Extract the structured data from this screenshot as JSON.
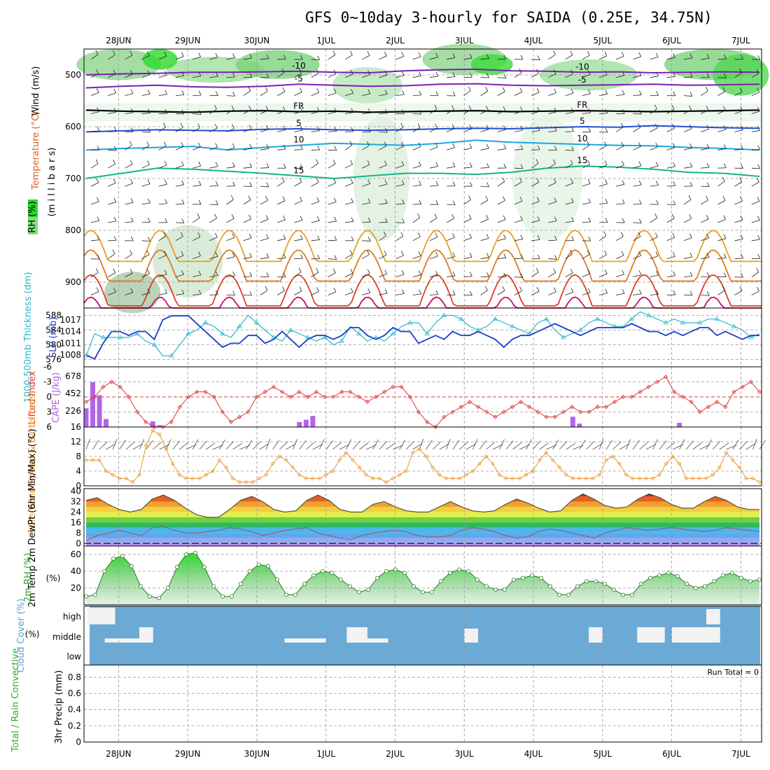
{
  "chart_data": {
    "type": "meteogram",
    "title": "GFS 0~10day 3-hourly for SAIDA (0.25E, 34.75N)",
    "dates": [
      "28JUN",
      "29JUN",
      "30JUN",
      "1JUL",
      "2JUL",
      "3JUL",
      "4JUL",
      "5JUL",
      "6JUL",
      "7JUL"
    ],
    "time_axis": {
      "start_day": -0.5,
      "end_day": 9.3,
      "step_hours": 3
    },
    "colors": {
      "rh": "#7fe07f",
      "temp_cold": "#7a1fb0",
      "temp_blue": "#1e4fd6",
      "temp_cyan": "#1aa8e0",
      "temp_green": "#12b58a",
      "temp_orange": "#e3a020",
      "temp_red": "#d94020",
      "slp": "#1a3fc8",
      "thickness": "#2ab8c8",
      "cape": "#b064e8",
      "lifted": "#d83838",
      "wind10m": "#e8962a",
      "rh2m": "#2ea82e",
      "cloud": "#6aaad4",
      "cloudblock": "#f2f2f2"
    },
    "panels": {
      "upper": {
        "ylabel_wind": "Wind (m/s)",
        "ylabel_temp": "Temperature (°C)",
        "ylabel_rh": "RH (%)",
        "ylabel_p": "(m i l l i b a r s)",
        "pressure_ticks": [
          "500",
          "600",
          "700",
          "800",
          "900"
        ],
        "pressure_values": [
          500,
          600,
          700,
          800,
          900
        ],
        "plim": [
          450,
          950
        ],
        "freezing_label": "FR",
        "isotherms": [
          {
            "label": "-10",
            "level": [
              500,
              498,
              497,
              495,
              495,
              494,
              493,
              495,
              496,
              492,
              490,
              489,
              492,
              493,
              495,
              494,
              496,
              495,
              494,
              495
            ],
            "color": "#7a1fb0"
          },
          {
            "label": "-5",
            "level": [
              525,
              522,
              520,
              523,
              524,
              522,
              518,
              520,
              522,
              521,
              518,
              517,
              520,
              521,
              520,
              519,
              518,
              520,
              519,
              518
            ],
            "color": "#7a1fb0"
          },
          {
            "label": "FR",
            "level": [
              568,
              570,
              571,
              572,
              570,
              569,
              571,
              570,
              572,
              571,
              570,
              569,
              571,
              570,
              569,
              570,
              571,
              570,
              569,
              568
            ],
            "color": "#000000"
          },
          {
            "label": "5",
            "level": [
              610,
              608,
              606,
              607,
              608,
              605,
              604,
              606,
              607,
              606,
              604,
              603,
              604,
              602,
              600,
              601,
              598,
              600,
              602,
              603
            ],
            "color": "#1e4fd6"
          },
          {
            "label": "10",
            "level": [
              645,
              642,
              640,
              638,
              645,
              640,
              636,
              632,
              634,
              636,
              632,
              626,
              630,
              632,
              634,
              636,
              637,
              640,
              642,
              645
            ],
            "color": "#1aa8e0"
          },
          {
            "label": "15",
            "level": [
              700,
              690,
              680,
              682,
              686,
              690,
              695,
              700,
              695,
              690,
              690,
              692,
              688,
              680,
              676,
              678,
              682,
              688,
              690,
              696
            ],
            "color": "#12b58a"
          }
        ]
      },
      "slp_thickness": {
        "ylabel_left": "1000-500mb Thickness (dm)",
        "ylabel_right": "SLP (mb)",
        "thickness_ticks": [
          "576",
          "580",
          "584",
          "588"
        ],
        "slp_ticks": [
          "1008",
          "1011",
          "1014",
          "1017"
        ],
        "thickness": [
          577,
          583,
          582,
          582,
          582,
          582,
          583,
          581,
          580,
          577,
          577,
          580,
          583,
          584,
          586,
          585,
          583,
          582,
          585,
          588,
          586,
          584,
          582,
          581,
          584,
          583,
          582,
          581,
          582,
          580,
          581,
          585,
          583,
          581,
          582,
          581,
          583,
          585,
          586,
          586,
          583,
          586,
          588,
          588,
          587,
          585,
          584,
          585,
          587,
          586,
          585,
          584,
          583,
          586,
          587,
          584,
          582,
          583,
          584,
          586,
          587,
          586,
          585,
          585,
          587,
          589,
          588,
          587,
          586,
          587,
          586,
          586,
          586,
          587,
          587,
          586,
          585,
          584,
          582,
          583
        ],
        "slp": [
          1008,
          1007,
          1011,
          1014,
          1014,
          1013,
          1014,
          1014,
          1012,
          1017,
          1018,
          1018,
          1018,
          1016,
          1014,
          1012,
          1010,
          1011,
          1011,
          1013,
          1013,
          1011,
          1012,
          1014,
          1012,
          1010,
          1012,
          1013,
          1013,
          1012,
          1013,
          1015,
          1015,
          1013,
          1012,
          1013,
          1015,
          1014,
          1014,
          1011,
          1012,
          1013,
          1012,
          1014,
          1013,
          1013,
          1014,
          1013,
          1012,
          1010,
          1012,
          1013,
          1013,
          1014,
          1015,
          1016,
          1015,
          1014,
          1013,
          1014,
          1015,
          1015,
          1015,
          1015,
          1016,
          1015,
          1014,
          1014,
          1013,
          1014,
          1013,
          1014,
          1015,
          1015,
          1013,
          1014,
          1013,
          1012,
          1013,
          1013
        ]
      },
      "cape_li": {
        "ylabel_left": "Lifted Index",
        "ylabel_right": "CAPE (J/kg)",
        "li_ticks": [
          "-6",
          "-3",
          "0",
          "3",
          "6"
        ],
        "cape_ticks": [
          "16",
          "226",
          "452",
          "678"
        ],
        "lifted_index": [
          1,
          0,
          -2,
          -3,
          -2,
          0,
          3,
          5,
          6,
          6,
          5,
          2,
          0,
          -1,
          -1,
          0,
          3,
          5,
          4,
          3,
          0,
          -1,
          -2,
          -1,
          0,
          -1,
          0,
          -1,
          0,
          0,
          -1,
          -1,
          0,
          1,
          0,
          -1,
          -2,
          -2,
          0,
          3,
          5,
          6,
          4,
          3,
          2,
          1,
          2,
          3,
          4,
          3,
          2,
          1,
          2,
          3,
          4,
          4,
          3,
          2,
          3,
          3,
          2,
          2,
          1,
          0,
          0,
          -1,
          -2,
          -3,
          -4,
          -1,
          0,
          1,
          3,
          2,
          1,
          2,
          -1,
          -2,
          -3,
          -1
        ],
        "cape": [
          260,
          600,
          430,
          120,
          0,
          0,
          0,
          0,
          0,
          0,
          90,
          40,
          0,
          0,
          0,
          0,
          0,
          0,
          0,
          0,
          0,
          0,
          0,
          0,
          0,
          0,
          0,
          0,
          0,
          0,
          0,
          0,
          80,
          110,
          160,
          0,
          0,
          0,
          0,
          0,
          0,
          0,
          0,
          0,
          0,
          0,
          0,
          0,
          0,
          0,
          0,
          0,
          0,
          0,
          0,
          0,
          0,
          0,
          0,
          0,
          0,
          0,
          0,
          0,
          0,
          0,
          0,
          0,
          0,
          0,
          0,
          0,
          0,
          150,
          60,
          0,
          0,
          0,
          0,
          0,
          0,
          0,
          0,
          0,
          0,
          0,
          0,
          0,
          0,
          70,
          0,
          0,
          0,
          0,
          0,
          0,
          0,
          0,
          0,
          0,
          0,
          0
        ]
      },
      "wind10m": {
        "ylabel": "10m Wind Speed & Barbs (m/s)",
        "ticks": [
          "0",
          "4",
          "8",
          "12"
        ],
        "speed": [
          7,
          7,
          7,
          4,
          3,
          2,
          2,
          1,
          3,
          11,
          15,
          14,
          10,
          6,
          3,
          2,
          2,
          2,
          3,
          4,
          7,
          5,
          2,
          1,
          1,
          1,
          2,
          3,
          6,
          8,
          7,
          5,
          3,
          2,
          2,
          2,
          3,
          4,
          7,
          9,
          7,
          5,
          3,
          2,
          2,
          1,
          2,
          3,
          4,
          9,
          10,
          8,
          5,
          3,
          2,
          2,
          2,
          3,
          4,
          6,
          8,
          6,
          3,
          2,
          2,
          2,
          3,
          4,
          7,
          9,
          7,
          5,
          3,
          2,
          2,
          2,
          2,
          3,
          7,
          8,
          6,
          3,
          2,
          2,
          2,
          2,
          3,
          6,
          8,
          6,
          2,
          2,
          2,
          2,
          3,
          5,
          9,
          7,
          5,
          2,
          2,
          1
        ]
      },
      "temp2m": {
        "ylabel": "2m Temp 2m DewPt (6hr Min/Max) (°C)",
        "ticks": [
          "0",
          "8",
          "16",
          "24",
          "32",
          "40"
        ],
        "temp": [
          33,
          35,
          30,
          26,
          24,
          26,
          34,
          37,
          33,
          27,
          22,
          20,
          20,
          26,
          33,
          36,
          32,
          26,
          24,
          25,
          33,
          37,
          33,
          26,
          24,
          24,
          30,
          32,
          28,
          25,
          24,
          24,
          28,
          32,
          28,
          25,
          24,
          25,
          30,
          34,
          31,
          27,
          24,
          25,
          33,
          38,
          34,
          29,
          27,
          28,
          34,
          38,
          35,
          30,
          27,
          27,
          32,
          36,
          33,
          28,
          26,
          26
        ],
        "dewpt": [
          2,
          6,
          8,
          10,
          8,
          6,
          12,
          13,
          10,
          8,
          8,
          9,
          10,
          12,
          11,
          9,
          6,
          8,
          10,
          11,
          12,
          8,
          6,
          4,
          3,
          6,
          8,
          9,
          10,
          9,
          6,
          5,
          5,
          6,
          10,
          12,
          11,
          9,
          6,
          4,
          5,
          9,
          11,
          10,
          8,
          6,
          4,
          8,
          10,
          12,
          11,
          10,
          11,
          12,
          11,
          10,
          9,
          10,
          12,
          11,
          10,
          9
        ]
      },
      "rh2m": {
        "ylabel": "2m RH (%)",
        "ticks": [
          "20",
          "40",
          "60"
        ],
        "rh": [
          10,
          12,
          40,
          55,
          58,
          46,
          22,
          10,
          8,
          20,
          45,
          60,
          62,
          45,
          22,
          10,
          10,
          25,
          40,
          48,
          46,
          30,
          12,
          12,
          25,
          35,
          40,
          38,
          30,
          22,
          15,
          18,
          32,
          40,
          42,
          38,
          22,
          15,
          15,
          28,
          38,
          42,
          40,
          30,
          22,
          18,
          18,
          30,
          32,
          35,
          32,
          22,
          12,
          12,
          22,
          28,
          28,
          25,
          18,
          12,
          12,
          25,
          32,
          35,
          38,
          34,
          25,
          20,
          22,
          28,
          35,
          38,
          32,
          28,
          30
        ]
      },
      "cloud": {
        "ylabel": "Cloud Cover (%)",
        "labels": [
          "high",
          "middle",
          "low"
        ]
      },
      "precip": {
        "ylabel_left": "Total / Rain Convective",
        "ylabel_right": "3hr Precip (mm)",
        "ticks": [
          "0",
          "0.2",
          "0.4",
          "0.6",
          "0.8"
        ],
        "run_total": "Run Total = 0"
      }
    }
  }
}
